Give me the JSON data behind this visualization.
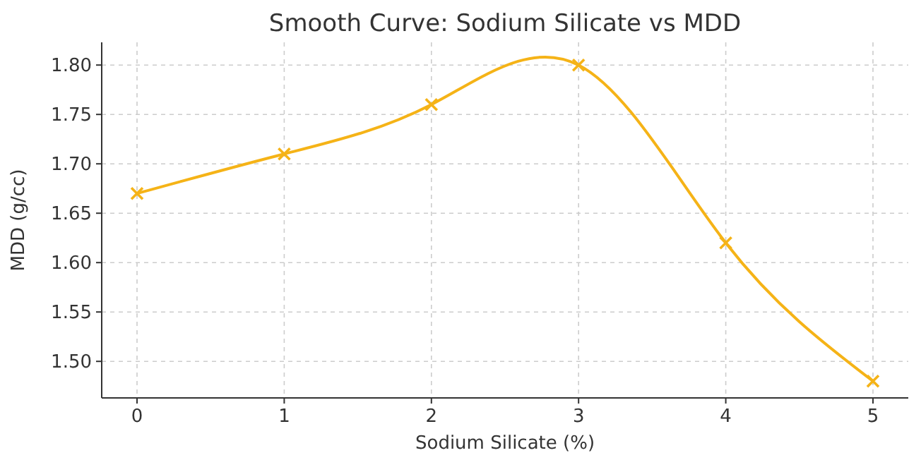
{
  "chart_data": {
    "type": "line",
    "title": "Smooth Curve: Sodium Silicate vs MDD",
    "xlabel": "Sodium Silicate (%)",
    "ylabel": "MDD (g/cc)",
    "x": [
      0,
      1,
      2,
      3,
      4,
      5
    ],
    "series": [
      {
        "color": "#f5b317",
        "values": [
          1.67,
          1.71,
          1.76,
          1.8,
          1.62,
          1.48
        ]
      }
    ],
    "xlim": [
      -0.24,
      5.24
    ],
    "xticks": [
      0,
      1,
      2,
      3,
      4,
      5
    ],
    "ylim": [
      1.463,
      1.823
    ],
    "yticks": [
      {
        "value": 1.5,
        "label": "1.50"
      },
      {
        "value": 1.55,
        "label": "1.55"
      },
      {
        "value": 1.6,
        "label": "1.60"
      },
      {
        "value": 1.65,
        "label": "1.65"
      },
      {
        "value": 1.7,
        "label": "1.70"
      },
      {
        "value": 1.75,
        "label": "1.75"
      },
      {
        "value": 1.8,
        "label": "1.80"
      }
    ],
    "grid": true,
    "marker": "cross",
    "line_style": "solid"
  }
}
